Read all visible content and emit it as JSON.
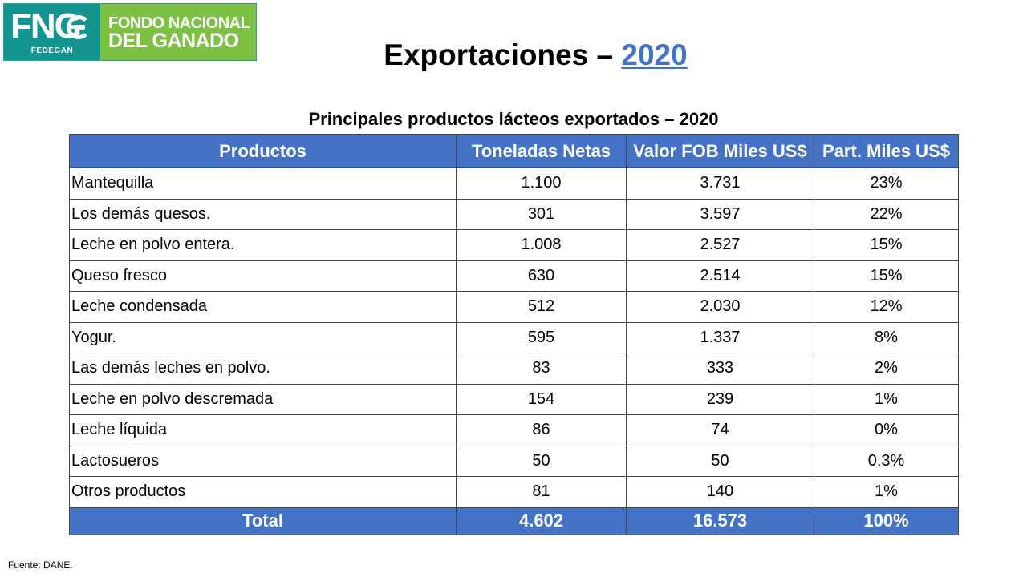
{
  "logo": {
    "mark": "FNG",
    "sub": "FEDEGAN",
    "line1": "FONDO NACIONAL",
    "line2": "DEL GANADO",
    "colors": {
      "teal": "#13958f",
      "green": "#7dc142"
    }
  },
  "title": {
    "text": "Exportaciones – ",
    "year": "2020"
  },
  "table": {
    "title": "Principales productos lácteos exportados – 2020",
    "headers": [
      "Productos",
      "Toneladas Netas",
      "Valor FOB Miles US$",
      "Part. Miles US$"
    ],
    "rows": [
      [
        "Mantequilla",
        "1.100",
        "3.731",
        "23%"
      ],
      [
        "Los demás quesos.",
        "301",
        "3.597",
        "22%"
      ],
      [
        "Leche en polvo entera.",
        "1.008",
        "2.527",
        "15%"
      ],
      [
        "Queso fresco",
        "630",
        "2.514",
        "15%"
      ],
      [
        "Leche condensada",
        "512",
        "2.030",
        "12%"
      ],
      [
        "Yogur.",
        "595",
        "1.337",
        "8%"
      ],
      [
        "Las demás leches en polvo.",
        "83",
        "333",
        "2%"
      ],
      [
        "Leche en polvo descremada",
        "154",
        "239",
        "1%"
      ],
      [
        "Leche líquida",
        "86",
        "74",
        "0%"
      ],
      [
        "Lactosueros",
        "50",
        "50",
        "0,3%"
      ],
      [
        "Otros productos",
        "81",
        "140",
        "1%"
      ]
    ],
    "total": [
      "Total",
      "4.602",
      "16.573",
      "100%"
    ],
    "header_color": "#4472c4"
  },
  "source": "Fuente: DANE."
}
